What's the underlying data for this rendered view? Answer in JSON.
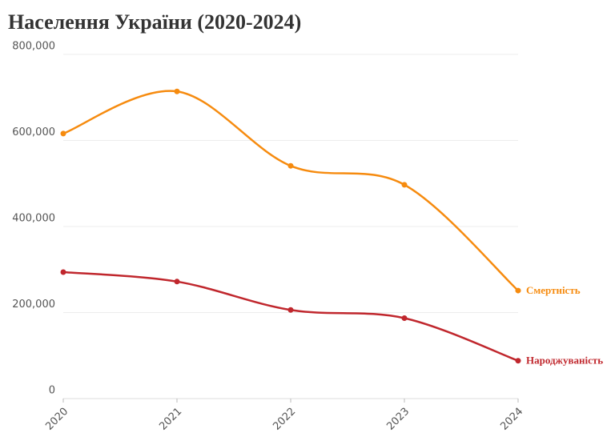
{
  "chart_data": {
    "type": "line",
    "title": "Населення України (2020-2024)",
    "categories": [
      "2020",
      "2021",
      "2022",
      "2023",
      "2024"
    ],
    "series": [
      {
        "name": "Смертність",
        "color": "#f68b0f",
        "values": [
          616000,
          714000,
          541000,
          497000,
          251000
        ]
      },
      {
        "name": "Народжуваність",
        "color": "#c0272d",
        "values": [
          294000,
          272000,
          206000,
          187000,
          88000
        ]
      }
    ],
    "ylim": [
      0,
      800000
    ],
    "yticks": [
      0,
      {
        "value": 200000,
        "label": "200,000"
      },
      {
        "value": 400000,
        "label": "400,000"
      },
      {
        "value": 600000,
        "label": "600,000"
      },
      {
        "value": 800000,
        "label": "800,000"
      }
    ],
    "grid": true
  }
}
